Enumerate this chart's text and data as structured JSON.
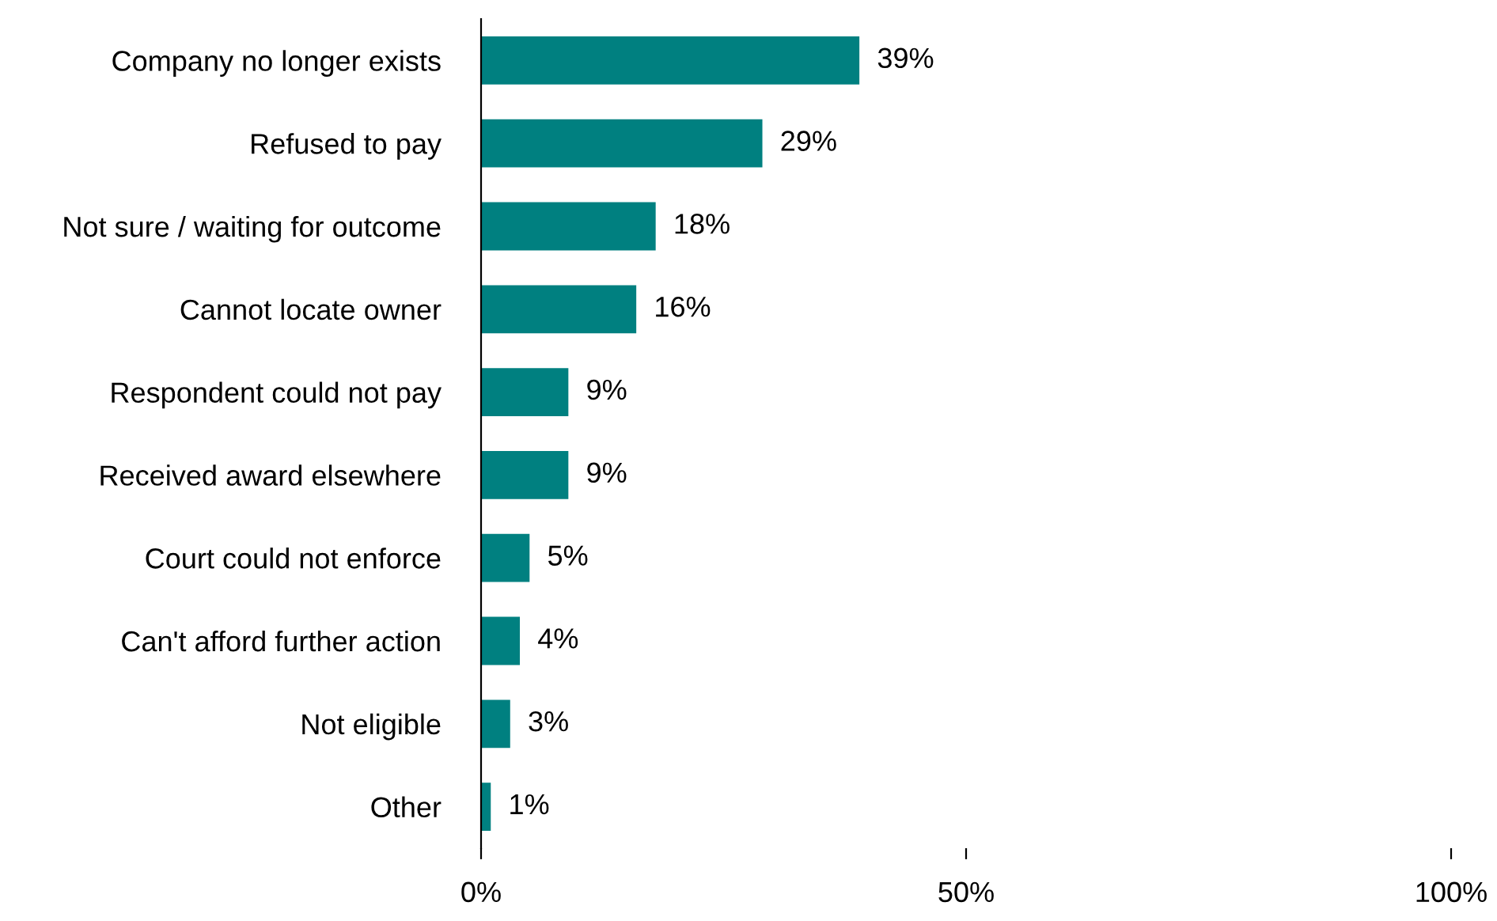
{
  "chart_data": {
    "type": "bar",
    "orientation": "horizontal",
    "categories": [
      "Company no longer exists",
      "Refused to pay",
      "Not sure / waiting for outcome",
      "Cannot locate owner",
      "Respondent could not pay",
      "Received award elsewhere",
      "Court could not enforce",
      "Can't afford further action",
      "Not eligible",
      "Other"
    ],
    "values": [
      39,
      29,
      18,
      16,
      9,
      9,
      5,
      4,
      3,
      1
    ],
    "value_labels": [
      "39%",
      "29%",
      "18%",
      "16%",
      "9%",
      "9%",
      "5%",
      "4%",
      "3%",
      "1%"
    ],
    "color": "#008080",
    "xlim": [
      0,
      100
    ],
    "xticks": [
      {
        "value": 0,
        "label": "0%"
      },
      {
        "value": 50,
        "label": "50%"
      },
      {
        "value": 100,
        "label": "100%"
      }
    ],
    "grid": false,
    "legend": false
  }
}
